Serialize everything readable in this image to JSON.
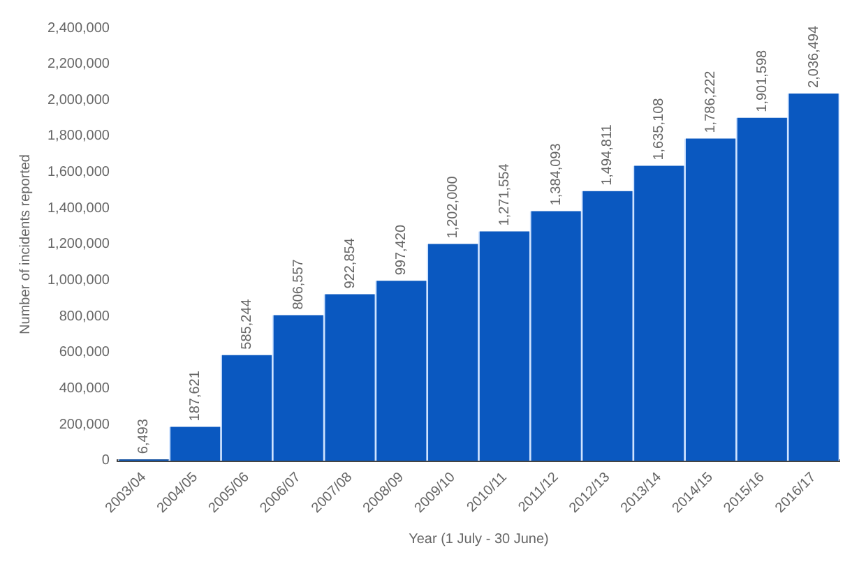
{
  "chart_data": {
    "type": "bar",
    "xlabel": "Year (1 July - 30 June)",
    "ylabel": "Number of incidents reported",
    "categories": [
      "2003/04",
      "2004/05",
      "2005/06",
      "2006/07",
      "2007/08",
      "2008/09",
      "2009/10",
      "2010/11",
      "2011/12",
      "2012/13",
      "2013/14",
      "2014/15",
      "2015/16",
      "2016/17"
    ],
    "values": [
      6493,
      187621,
      585244,
      806557,
      922854,
      997420,
      1202000,
      1271554,
      1384093,
      1494811,
      1635108,
      1786222,
      1901598,
      2036494
    ],
    "value_labels": [
      "6,493",
      "187,621",
      "585,244",
      "806,557",
      "922,854",
      "997,420",
      "1,202,000",
      "1,271,554",
      "1,384,093",
      "1,494,811",
      "1,635,108",
      "1,786,222",
      "1,901,598",
      "2,036,494"
    ],
    "color": "#0a58c0",
    "grid": false,
    "legend": false,
    "ylim": [
      0,
      2400000
    ],
    "yticks": [
      0,
      {
        "value": 200000,
        "label": "200,000"
      },
      {
        "value": 400000,
        "label": "400,000"
      },
      {
        "value": 600000,
        "label": "600,000"
      },
      {
        "value": 800000,
        "label": "800,000"
      },
      {
        "value": 1000000,
        "label": "1,000,000"
      },
      {
        "value": 1200000,
        "label": "1,200,000"
      },
      {
        "value": 1400000,
        "label": "1,400,000"
      },
      {
        "value": 1600000,
        "label": "1,600,000"
      },
      {
        "value": 1800000,
        "label": "1,800,000"
      },
      {
        "value": 2000000,
        "label": "2,000,000"
      },
      {
        "value": 2200000,
        "label": "2,200,000"
      },
      {
        "value": 2400000,
        "label": "2,400,000"
      }
    ]
  }
}
